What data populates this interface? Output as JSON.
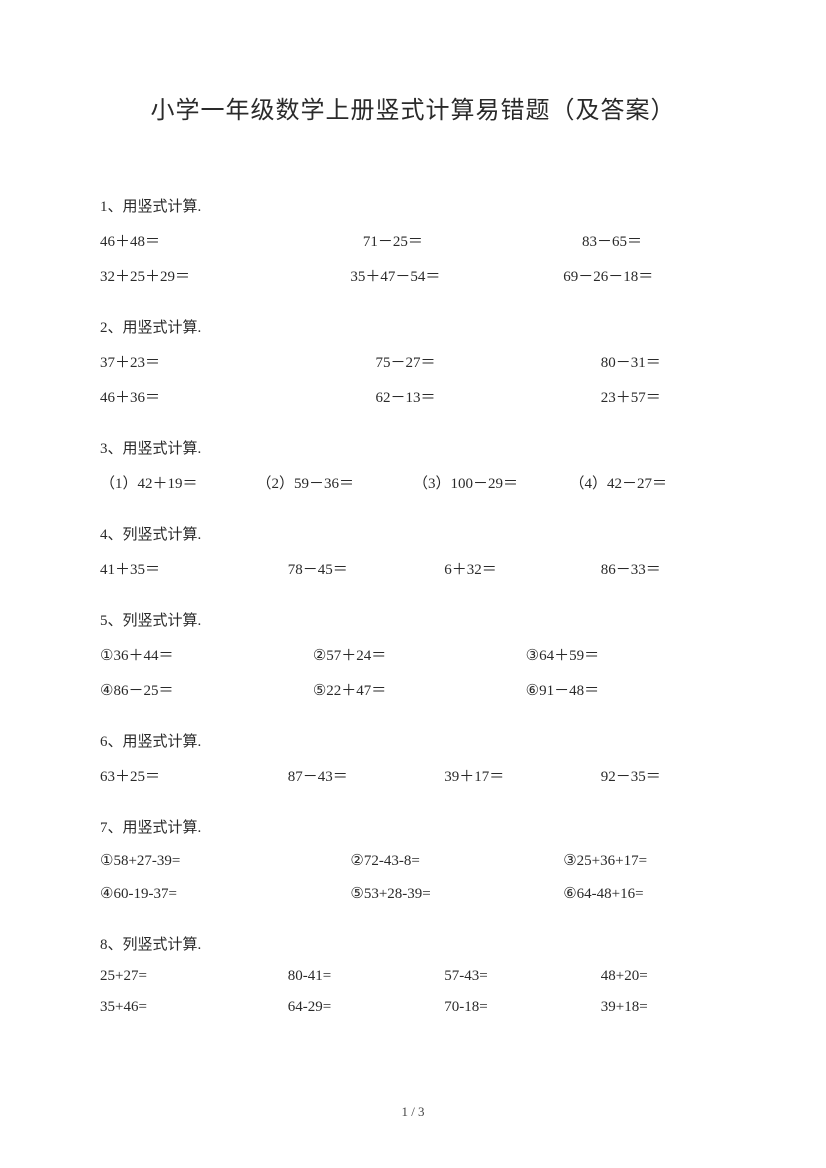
{
  "title": "小学一年级数学上册竖式计算易错题（及答案）",
  "footer": "1 / 3",
  "colors": {
    "text": "#2a2a2a",
    "bg": "#ffffff"
  },
  "font": {
    "family": "SimSun",
    "title_size": 24,
    "body_size": 15
  },
  "sections": [
    {
      "head": "1、用竖式计算.",
      "rows": [
        {
          "cls": "q1a",
          "cells": [
            "46＋48＝",
            "71－25＝",
            "83－65＝"
          ]
        },
        {
          "cls": "q1b",
          "cells": [
            "32＋25＋29＝",
            "35＋47－54＝",
            "69－26－18＝"
          ]
        }
      ]
    },
    {
      "head": "2、用竖式计算.",
      "rows": [
        {
          "cls": "q2",
          "cells": [
            "37＋23＝",
            "75－27＝",
            "80－31＝"
          ]
        },
        {
          "cls": "q2",
          "cells": [
            "46＋36＝",
            "62－13＝",
            "23＋57＝"
          ]
        }
      ]
    },
    {
      "head": "3、用竖式计算.",
      "rows": [
        {
          "cls": "cols4",
          "cells": [
            "（1）42＋19＝",
            "（2）59－36＝",
            "（3）100－29＝",
            "（4）42－27＝"
          ]
        }
      ]
    },
    {
      "head": "4、列竖式计算.",
      "rows": [
        {
          "cls": "cols4b",
          "cells": [
            "41＋35＝",
            "78－45＝",
            "6＋32＝",
            "86－33＝"
          ]
        }
      ]
    },
    {
      "head": "5、列竖式计算.",
      "rows": [
        {
          "cls": "q5",
          "cells": [
            "①36＋44＝",
            "②57＋24＝",
            "③64＋59＝"
          ]
        },
        {
          "cls": "q5",
          "cells": [
            "④86－25＝",
            "⑤22＋47＝",
            "⑥91－48＝"
          ]
        }
      ]
    },
    {
      "head": "6、用竖式计算.",
      "rows": [
        {
          "cls": "cols4b",
          "cells": [
            "63＋25＝",
            "87－43＝",
            "39＋17＝",
            "92－35＝"
          ]
        }
      ]
    },
    {
      "head": "7、用竖式计算.",
      "rows": [
        {
          "cls": "q1b",
          "cells": [
            "①58+27-39=",
            "②72-43-8=",
            "③25+36+17="
          ]
        },
        {
          "cls": "q1b",
          "cells": [
            "④60-19-37=",
            "⑤53+28-39=",
            "⑥64-48+16="
          ]
        }
      ]
    },
    {
      "head": "8、列竖式计算.",
      "rows": [
        {
          "cls": "cols4b",
          "cells": [
            "25+27=",
            "80-41=",
            "57-43=",
            "48+20="
          ]
        },
        {
          "cls": "cols4b",
          "cells": [
            "35+46=",
            "64-29=",
            "70-18=",
            "39+18="
          ]
        }
      ]
    }
  ]
}
